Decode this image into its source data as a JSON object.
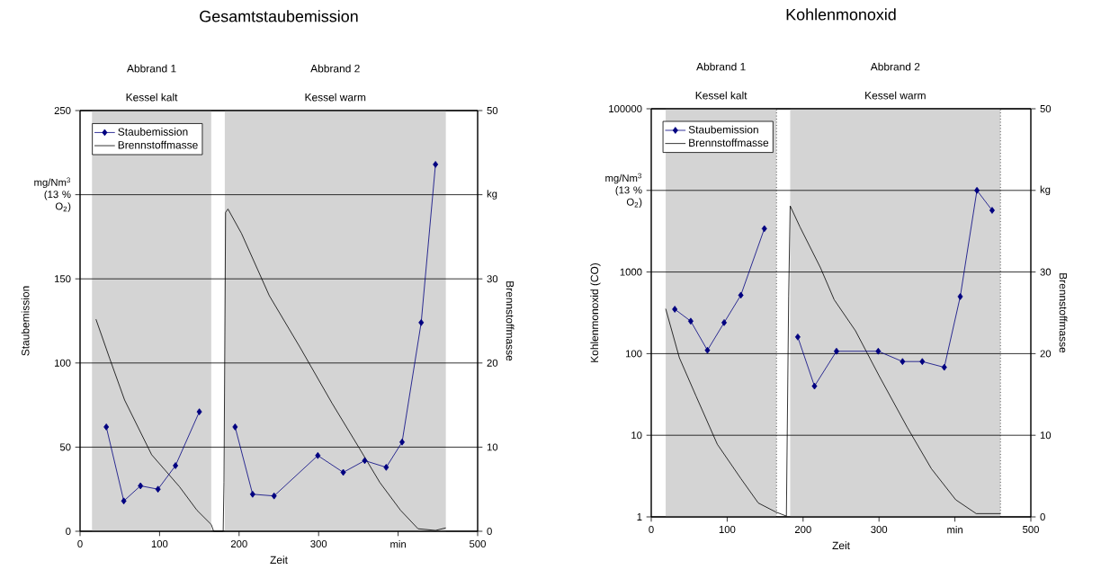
{
  "chart_data": [
    {
      "type": "line",
      "title": "Gesamtstaubemission",
      "xlabel": "Zeit",
      "ylabel": "Staubemission",
      "y2label": "Brennstoffmasse",
      "xlim": [
        0,
        500
      ],
      "xticks": [
        0,
        100,
        200,
        300,
        {
          "value": 400,
          "label": "min"
        },
        500
      ],
      "ylim": [
        0,
        250
      ],
      "yticks": [
        0,
        50,
        100,
        150,
        {
          "value": 200,
          "label": "mg/Nm$^{3}$ (13 % O$_{2}$)"
        },
        250
      ],
      "y2lim": [
        0,
        50
      ],
      "y2ticks": [
        0,
        10,
        20,
        30,
        {
          "value": 40,
          "label": "kg"
        },
        50
      ],
      "grid": "y",
      "legend": "top left",
      "marker": "diamond",
      "bands": [
        {
          "axis": "x",
          "from": 15,
          "to": 165,
          "label": "Kessel kalt",
          "color": "#d4d4d4"
        },
        {
          "axis": "x",
          "from": 182,
          "to": 460,
          "label": "Kessel warm",
          "color": "#d4d4d4"
        }
      ],
      "annotations": [
        "Abbrand 1",
        "Abbrand 2"
      ],
      "series": [
        {
          "name": "Staubemission",
          "color": "#000080",
          "x": [
            33,
            55,
            76,
            98,
            120,
            150,
            null,
            195,
            217,
            244,
            299,
            331,
            358,
            385,
            405,
            429,
            447
          ],
          "values": [
            62,
            18,
            27,
            25,
            39,
            71,
            null,
            62,
            22,
            21,
            45,
            35,
            42,
            38,
            53,
            124,
            218
          ]
        },
        {
          "name": "Brennstoffmasse",
          "color": "#000000",
          "axis": "y2",
          "marker": "none",
          "x": [
            20,
            37,
            56,
            90,
            125,
            147,
            165,
            168,
            180,
            181,
            183,
            186,
            203,
            238,
            277,
            317,
            351,
            377,
            403,
            425,
            447,
            460
          ],
          "values": [
            25.2,
            20.6,
            15.6,
            9.1,
            5.3,
            2.5,
            0.8,
            0,
            0,
            5.8,
            37.9,
            38.3,
            35.4,
            28,
            21.8,
            15.2,
            9.9,
            5.8,
            2.5,
            0.3,
            0.1,
            0.4
          ]
        }
      ]
    },
    {
      "type": "line",
      "title": "Kohlenmonoxid",
      "xlabel": "Zeit",
      "ylabel": "Kohlenmonoxid (CO)",
      "y2label": "Brennstoffmasse",
      "xlim": [
        0,
        500
      ],
      "xticks": [
        0,
        100,
        200,
        300,
        {
          "value": 400,
          "label": "min"
        },
        500
      ],
      "ylim": [
        1,
        100000
      ],
      "yticks": [
        1,
        10,
        100,
        1000,
        {
          "value": 10000,
          "label": "mg/Nm$^{3}$ (13 % O$_{2}$)"
        },
        100000
      ],
      "log": true,
      "y2lim": [
        0,
        50
      ],
      "y2ticks": [
        0,
        10,
        20,
        30,
        {
          "value": 40,
          "label": "kg"
        },
        50
      ],
      "grid": "y",
      "legend": "top left",
      "marker": "diamond",
      "bands": [
        {
          "axis": "x",
          "from": 19,
          "to": 165,
          "label": "Kessel kalt",
          "color": "#d4d4d4"
        },
        {
          "axis": "x",
          "from": 183,
          "to": 460,
          "label": "Kessel warm",
          "color": "#d4d4d4"
        }
      ],
      "ref_lines": [
        {
          "axis": "x",
          "value": 165,
          "line_style": "dotted",
          "color": "#000000"
        },
        {
          "axis": "x",
          "value": 460,
          "line_style": "dotted",
          "color": "#000000"
        }
      ],
      "annotations": [
        "Abbrand 1",
        "Abbrand 2"
      ],
      "series": [
        {
          "name": "Staubemission",
          "color": "#000080",
          "x": [
            31,
            52,
            74,
            96,
            118,
            149,
            null,
            193,
            215,
            244,
            299,
            331,
            357,
            386,
            407,
            429,
            449
          ],
          "values": [
            350,
            250,
            110,
            240,
            520,
            3400,
            null,
            160,
            40,
            107,
            107,
            80,
            80,
            68,
            500,
            10000,
            5700
          ]
        },
        {
          "name": "Brennstoffmasse",
          "color": "#000000",
          "axis": "y2",
          "marker": "none",
          "x": [
            19,
            37,
            59,
            87,
            118,
            141,
            164,
            178,
            181,
            183,
            196,
            223,
            241,
            269,
            300,
            337,
            369,
            401,
            428,
            460
          ],
          "values": [
            25.5,
            19.5,
            14.8,
            8.9,
            4.7,
            1.7,
            0.6,
            0.1,
            27,
            38.1,
            35.5,
            30.5,
            26.6,
            22.8,
            17.3,
            11,
            5.9,
            2.1,
            0.4,
            0.4
          ]
        }
      ]
    }
  ]
}
